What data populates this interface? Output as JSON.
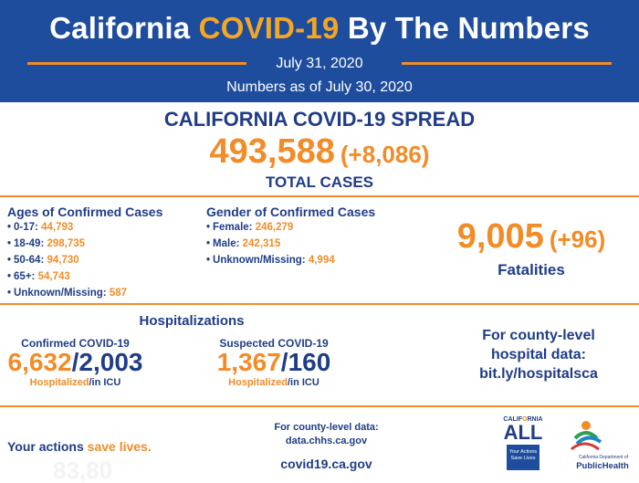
{
  "header": {
    "title_pre": "California ",
    "title_highlight": "COVID-19",
    "title_post": " By The Numbers",
    "date": "July 31, 2020",
    "as_of": "Numbers as of July 30, 2020",
    "colors": {
      "background": "#1e4d9e",
      "highlight": "#f5a623",
      "accent_line": "#f28c28"
    }
  },
  "spread": {
    "title": "CALIFORNIA COVID-19 SPREAD",
    "total": "493,588",
    "change": "(+8,086)",
    "label": "TOTAL CASES"
  },
  "ages": {
    "title": "Ages of Confirmed Cases",
    "items": [
      {
        "label": "0-17:",
        "value": "44,793"
      },
      {
        "label": "18-49:",
        "value": "298,735"
      },
      {
        "label": "50-64:",
        "value": "94,730"
      },
      {
        "label": "65+:",
        "value": "54,743"
      },
      {
        "label": "Unknown/Missing:",
        "value": "587"
      }
    ]
  },
  "gender": {
    "title": "Gender of Confirmed Cases",
    "items": [
      {
        "label": "Female:",
        "value": "246,279"
      },
      {
        "label": "Male:",
        "value": "242,315"
      },
      {
        "label": "Unknown/Missing:",
        "value": "4,994"
      }
    ]
  },
  "fatalities": {
    "value": "9,005",
    "change": "(+96)",
    "label": "Fatalities"
  },
  "hospitalizations": {
    "title": "Hospitalizations",
    "confirmed": {
      "title": "Confirmed COVID-19",
      "hospitalized": "6,632",
      "separator": "/",
      "icu": "2,003",
      "hosp_label": "Hospitalized",
      "icu_label": "/in ICU"
    },
    "suspected": {
      "title": "Suspected COVID-19",
      "hospitalized": "1,367",
      "separator": "/",
      "icu": "160",
      "hosp_label": "Hospitalized",
      "icu_label": "/in ICU"
    }
  },
  "county_hospital": {
    "line1": "For county-level",
    "line2": "hospital data:",
    "line3": "bit.ly/hospitalsca"
  },
  "footer": {
    "actions_pre": "Your actions ",
    "actions_highlight": "save lives.",
    "county_data_line1": "For county-level data:",
    "county_data_line2": "data.chhs.ca.gov",
    "site": "covid19.ca.gov"
  },
  "logos": {
    "ca_all_top_pre": "CALIF",
    "ca_all_top_o": "O",
    "ca_all_top_post": "RNIA",
    "ca_all_word": "ALL",
    "ca_all_box_line1": "Your Actions",
    "ca_all_box_line2": "Save Lives",
    "public_health_top": "California Department of",
    "public_health_name": "PublicHealth"
  }
}
